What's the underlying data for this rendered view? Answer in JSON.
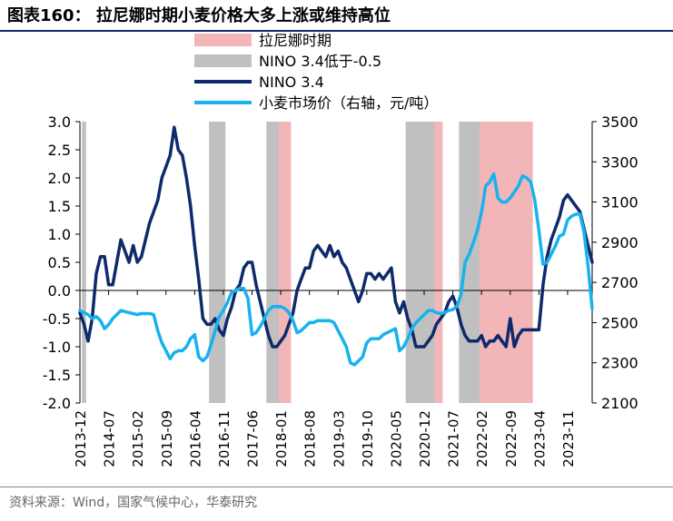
{
  "figure": {
    "title": "图表160：   拉尼娜时期小麦价格大多上涨或维持高位",
    "source": "资料来源：Wind，国家气候中心，华泰研究"
  },
  "colors": {
    "la_nina_band": "#f2b6b9",
    "nino_low_band": "#c0c0c0",
    "nino_line": "#0e2a6b",
    "wheat_line": "#16b3ef",
    "title_rule": "#1a2b6d",
    "axis": "#000000"
  },
  "chart_data": {
    "type": "line",
    "title": "",
    "legend": {
      "placement": "top-center",
      "entries": [
        {
          "label": "拉尼娜时期",
          "kind": "band",
          "color_key": "la_nina_band"
        },
        {
          "label": "NINO 3.4低于-0.5",
          "kind": "band",
          "color_key": "nino_low_band"
        },
        {
          "label": "NINO 3.4",
          "kind": "line",
          "color_key": "nino_line"
        },
        {
          "label": "小麦市场价（右轴，元/吨）",
          "kind": "line",
          "color_key": "wheat_line"
        }
      ]
    },
    "x_range": [
      "2013-12",
      "2024-05"
    ],
    "x_tick_labels": [
      "2013-12",
      "2014-07",
      "2015-02",
      "2015-09",
      "2016-04",
      "2016-11",
      "2017-06",
      "2018-01",
      "2018-08",
      "2019-03",
      "2019-10",
      "2020-05",
      "2020-12",
      "2021-07",
      "2022-02",
      "2022-09",
      "2023-04",
      "2023-11"
    ],
    "left_axis": {
      "min": -2.0,
      "max": 3.0,
      "step": 0.5,
      "tick_labels": [
        "-2.0",
        "-1.5",
        "-1.0",
        "-0.5",
        "0.0",
        "0.5",
        "1.0",
        "1.5",
        "2.0",
        "2.5",
        "3.0"
      ]
    },
    "right_axis": {
      "min": 2100,
      "max": 3500,
      "step": 200,
      "tick_labels": [
        "2100",
        "2300",
        "2500",
        "2700",
        "2900",
        "3100",
        "3300",
        "3500"
      ]
    },
    "grid": false,
    "la_nina_periods": [
      [
        "2018-01",
        "2018-03"
      ],
      [
        "2021-03",
        "2021-04"
      ],
      [
        "2022-02",
        "2023-02"
      ]
    ],
    "nino_low_periods": [
      [
        "2014-01",
        "2014-01"
      ],
      [
        "2016-08",
        "2016-11"
      ],
      [
        "2017-10",
        "2018-03"
      ],
      [
        "2020-08",
        "2021-03"
      ],
      [
        "2021-09",
        "2023-02"
      ]
    ],
    "series": [
      {
        "name": "NINO 3.4",
        "axis": "left",
        "color_key": "nino_line",
        "points": [
          [
            "2013-12",
            -0.4
          ],
          [
            "2014-01",
            -0.6
          ],
          [
            "2014-02",
            -0.9
          ],
          [
            "2014-03",
            -0.5
          ],
          [
            "2014-04",
            0.3
          ],
          [
            "2014-05",
            0.6
          ],
          [
            "2014-06",
            0.6
          ],
          [
            "2014-07",
            0.1
          ],
          [
            "2014-08",
            0.1
          ],
          [
            "2014-09",
            0.5
          ],
          [
            "2014-10",
            0.9
          ],
          [
            "2014-11",
            0.7
          ],
          [
            "2014-12",
            0.5
          ],
          [
            "2015-01",
            0.8
          ],
          [
            "2015-02",
            0.5
          ],
          [
            "2015-03",
            0.6
          ],
          [
            "2015-04",
            0.9
          ],
          [
            "2015-05",
            1.2
          ],
          [
            "2015-06",
            1.4
          ],
          [
            "2015-07",
            1.6
          ],
          [
            "2015-08",
            2.0
          ],
          [
            "2015-09",
            2.2
          ],
          [
            "2015-10",
            2.4
          ],
          [
            "2015-11",
            2.9
          ],
          [
            "2015-12",
            2.5
          ],
          [
            "2016-01",
            2.4
          ],
          [
            "2016-02",
            2.0
          ],
          [
            "2016-03",
            1.5
          ],
          [
            "2016-04",
            0.8
          ],
          [
            "2016-05",
            0.2
          ],
          [
            "2016-06",
            -0.5
          ],
          [
            "2016-07",
            -0.6
          ],
          [
            "2016-08",
            -0.6
          ],
          [
            "2016-09",
            -0.5
          ],
          [
            "2016-10",
            -0.7
          ],
          [
            "2016-11",
            -0.8
          ],
          [
            "2016-12",
            -0.5
          ],
          [
            "2017-01",
            -0.3
          ],
          [
            "2017-02",
            0.0
          ],
          [
            "2017-03",
            0.1
          ],
          [
            "2017-04",
            0.4
          ],
          [
            "2017-05",
            0.5
          ],
          [
            "2017-06",
            0.5
          ],
          [
            "2017-07",
            0.1
          ],
          [
            "2017-08",
            -0.2
          ],
          [
            "2017-09",
            -0.5
          ],
          [
            "2017-10",
            -0.8
          ],
          [
            "2017-11",
            -1.0
          ],
          [
            "2017-12",
            -1.0
          ],
          [
            "2018-01",
            -0.9
          ],
          [
            "2018-02",
            -0.8
          ],
          [
            "2018-03",
            -0.6
          ],
          [
            "2018-04",
            -0.4
          ],
          [
            "2018-05",
            0.0
          ],
          [
            "2018-06",
            0.2
          ],
          [
            "2018-07",
            0.4
          ],
          [
            "2018-08",
            0.4
          ],
          [
            "2018-09",
            0.7
          ],
          [
            "2018-10",
            0.8
          ],
          [
            "2018-11",
            0.7
          ],
          [
            "2018-12",
            0.6
          ],
          [
            "2019-01",
            0.8
          ],
          [
            "2019-02",
            0.6
          ],
          [
            "2019-03",
            0.7
          ],
          [
            "2019-04",
            0.5
          ],
          [
            "2019-05",
            0.4
          ],
          [
            "2019-06",
            0.2
          ],
          [
            "2019-07",
            0.0
          ],
          [
            "2019-08",
            -0.2
          ],
          [
            "2019-09",
            0.0
          ],
          [
            "2019-10",
            0.3
          ],
          [
            "2019-11",
            0.3
          ],
          [
            "2019-12",
            0.2
          ],
          [
            "2020-01",
            0.3
          ],
          [
            "2020-02",
            0.2
          ],
          [
            "2020-03",
            0.3
          ],
          [
            "2020-04",
            0.4
          ],
          [
            "2020-05",
            -0.2
          ],
          [
            "2020-06",
            -0.4
          ],
          [
            "2020-07",
            -0.2
          ],
          [
            "2020-08",
            -0.5
          ],
          [
            "2020-09",
            -0.7
          ],
          [
            "2020-10",
            -1.0
          ],
          [
            "2020-11",
            -1.0
          ],
          [
            "2020-12",
            -1.0
          ],
          [
            "2021-01",
            -0.9
          ],
          [
            "2021-02",
            -0.8
          ],
          [
            "2021-03",
            -0.6
          ],
          [
            "2021-04",
            -0.5
          ],
          [
            "2021-05",
            -0.4
          ],
          [
            "2021-06",
            -0.2
          ],
          [
            "2021-07",
            -0.1
          ],
          [
            "2021-08",
            -0.3
          ],
          [
            "2021-09",
            -0.6
          ],
          [
            "2021-10",
            -0.8
          ],
          [
            "2021-11",
            -0.9
          ],
          [
            "2021-12",
            -0.9
          ],
          [
            "2022-01",
            -0.9
          ],
          [
            "2022-02",
            -0.8
          ],
          [
            "2022-03",
            -1.0
          ],
          [
            "2022-04",
            -0.9
          ],
          [
            "2022-05",
            -0.9
          ],
          [
            "2022-06",
            -0.8
          ],
          [
            "2022-07",
            -0.9
          ],
          [
            "2022-08",
            -1.0
          ],
          [
            "2022-09",
            -0.5
          ],
          [
            "2022-10",
            -1.0
          ],
          [
            "2022-11",
            -0.8
          ],
          [
            "2022-12",
            -0.7
          ],
          [
            "2023-01",
            -0.7
          ],
          [
            "2023-02",
            -0.7
          ],
          [
            "2023-03",
            -0.7
          ],
          [
            "2023-04",
            -0.7
          ],
          [
            "2023-05",
            0.1
          ],
          [
            "2023-06",
            0.6
          ],
          [
            "2023-07",
            0.9
          ],
          [
            "2023-08",
            1.1
          ],
          [
            "2023-09",
            1.3
          ],
          [
            "2023-10",
            1.6
          ],
          [
            "2023-11",
            1.7
          ],
          [
            "2023-12",
            1.6
          ],
          [
            "2024-01",
            1.5
          ],
          [
            "2024-02",
            1.4
          ],
          [
            "2024-03",
            1.1
          ],
          [
            "2024-04",
            0.8
          ],
          [
            "2024-05",
            0.5
          ]
        ]
      },
      {
        "name": "小麦市场价（右轴，元/吨）",
        "axis": "right",
        "color_key": "wheat_line",
        "points": [
          [
            "2013-12",
            2560
          ],
          [
            "2014-01",
            2550
          ],
          [
            "2014-02",
            2540
          ],
          [
            "2014-03",
            2520
          ],
          [
            "2014-04",
            2530
          ],
          [
            "2014-05",
            2510
          ],
          [
            "2014-06",
            2470
          ],
          [
            "2014-07",
            2490
          ],
          [
            "2014-08",
            2520
          ],
          [
            "2014-09",
            2540
          ],
          [
            "2014-10",
            2560
          ],
          [
            "2014-11",
            2555
          ],
          [
            "2014-12",
            2550
          ],
          [
            "2015-01",
            2545
          ],
          [
            "2015-02",
            2540
          ],
          [
            "2015-03",
            2545
          ],
          [
            "2015-04",
            2545
          ],
          [
            "2015-05",
            2545
          ],
          [
            "2015-06",
            2540
          ],
          [
            "2015-07",
            2460
          ],
          [
            "2015-08",
            2400
          ],
          [
            "2015-09",
            2360
          ],
          [
            "2015-10",
            2320
          ],
          [
            "2015-11",
            2350
          ],
          [
            "2015-12",
            2360
          ],
          [
            "2016-01",
            2360
          ],
          [
            "2016-02",
            2380
          ],
          [
            "2016-03",
            2420
          ],
          [
            "2016-04",
            2440
          ],
          [
            "2016-05",
            2330
          ],
          [
            "2016-06",
            2310
          ],
          [
            "2016-07",
            2330
          ],
          [
            "2016-08",
            2390
          ],
          [
            "2016-09",
            2460
          ],
          [
            "2016-10",
            2530
          ],
          [
            "2016-11",
            2560
          ],
          [
            "2016-12",
            2600
          ],
          [
            "2017-01",
            2650
          ],
          [
            "2017-02",
            2660
          ],
          [
            "2017-03",
            2670
          ],
          [
            "2017-04",
            2670
          ],
          [
            "2017-05",
            2620
          ],
          [
            "2017-06",
            2440
          ],
          [
            "2017-07",
            2450
          ],
          [
            "2017-08",
            2480
          ],
          [
            "2017-09",
            2520
          ],
          [
            "2017-10",
            2560
          ],
          [
            "2017-11",
            2580
          ],
          [
            "2017-12",
            2580
          ],
          [
            "2018-01",
            2580
          ],
          [
            "2018-02",
            2570
          ],
          [
            "2018-03",
            2550
          ],
          [
            "2018-04",
            2510
          ],
          [
            "2018-05",
            2450
          ],
          [
            "2018-06",
            2460
          ],
          [
            "2018-07",
            2480
          ],
          [
            "2018-08",
            2500
          ],
          [
            "2018-09",
            2500
          ],
          [
            "2018-10",
            2510
          ],
          [
            "2018-11",
            2510
          ],
          [
            "2018-12",
            2510
          ],
          [
            "2019-01",
            2510
          ],
          [
            "2019-02",
            2500
          ],
          [
            "2019-03",
            2460
          ],
          [
            "2019-04",
            2420
          ],
          [
            "2019-05",
            2380
          ],
          [
            "2019-06",
            2300
          ],
          [
            "2019-07",
            2290
          ],
          [
            "2019-08",
            2310
          ],
          [
            "2019-09",
            2330
          ],
          [
            "2019-10",
            2400
          ],
          [
            "2019-11",
            2420
          ],
          [
            "2019-12",
            2420
          ],
          [
            "2020-01",
            2420
          ],
          [
            "2020-02",
            2440
          ],
          [
            "2020-03",
            2450
          ],
          [
            "2020-04",
            2460
          ],
          [
            "2020-05",
            2470
          ],
          [
            "2020-06",
            2360
          ],
          [
            "2020-07",
            2380
          ],
          [
            "2020-08",
            2420
          ],
          [
            "2020-09",
            2470
          ],
          [
            "2020-10",
            2500
          ],
          [
            "2020-11",
            2520
          ],
          [
            "2020-12",
            2540
          ],
          [
            "2021-01",
            2560
          ],
          [
            "2021-02",
            2560
          ],
          [
            "2021-03",
            2550
          ],
          [
            "2021-04",
            2545
          ],
          [
            "2021-05",
            2550
          ],
          [
            "2021-06",
            2560
          ],
          [
            "2021-07",
            2565
          ],
          [
            "2021-08",
            2580
          ],
          [
            "2021-09",
            2640
          ],
          [
            "2021-10",
            2800
          ],
          [
            "2021-11",
            2840
          ],
          [
            "2021-12",
            2900
          ],
          [
            "2022-01",
            2960
          ],
          [
            "2022-02",
            3050
          ],
          [
            "2022-03",
            3180
          ],
          [
            "2022-04",
            3200
          ],
          [
            "2022-05",
            3240
          ],
          [
            "2022-06",
            3120
          ],
          [
            "2022-07",
            3100
          ],
          [
            "2022-08",
            3100
          ],
          [
            "2022-09",
            3120
          ],
          [
            "2022-10",
            3150
          ],
          [
            "2022-11",
            3180
          ],
          [
            "2022-12",
            3230
          ],
          [
            "2023-01",
            3220
          ],
          [
            "2023-02",
            3200
          ],
          [
            "2023-03",
            3110
          ],
          [
            "2023-04",
            2960
          ],
          [
            "2023-05",
            2790
          ],
          [
            "2023-06",
            2800
          ],
          [
            "2023-07",
            2840
          ],
          [
            "2023-08",
            2880
          ],
          [
            "2023-09",
            2930
          ],
          [
            "2023-10",
            2940
          ],
          [
            "2023-11",
            3010
          ],
          [
            "2023-12",
            3030
          ],
          [
            "2024-01",
            3040
          ],
          [
            "2024-02",
            3040
          ],
          [
            "2024-03",
            2950
          ],
          [
            "2024-04",
            2780
          ],
          [
            "2024-05",
            2570
          ]
        ]
      }
    ]
  }
}
